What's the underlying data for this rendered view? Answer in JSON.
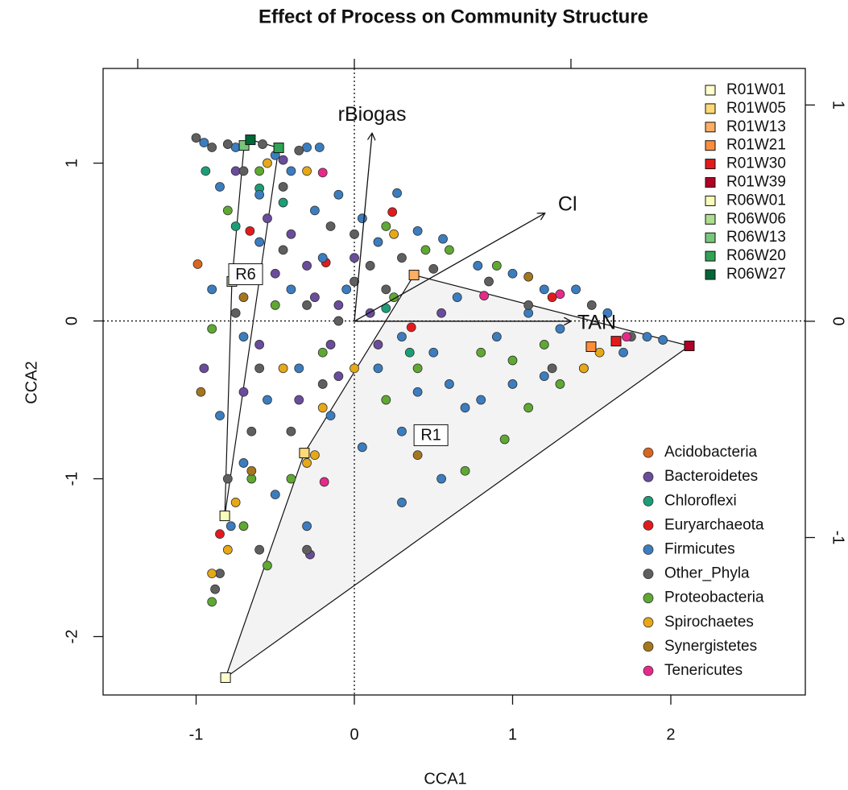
{
  "chart_data": {
    "type": "scatter",
    "title": "Effect of Process on Community Structure",
    "x_label": "CCA1",
    "y_label": "CCA2",
    "xlim": [
      -1.588,
      2.85
    ],
    "ylim": [
      -2.37,
      1.6
    ],
    "xticks": [
      -1,
      0,
      1,
      2
    ],
    "yticks": [
      -2,
      -1,
      0,
      1
    ],
    "x2lim": [
      -1.16,
      2.082
    ],
    "y2lim": [
      -1.728,
      1.169
    ],
    "x2ticks": [
      -1,
      0,
      1
    ],
    "y2ticks": [
      -1,
      0,
      1
    ],
    "legend": "bottom-right",
    "site_legend": "top-right",
    "series": [
      {
        "name": "Acidobacteria",
        "color": "#d9661f",
        "x": [
          -0.99
        ],
        "y": [
          0.36
        ]
      },
      {
        "name": "Bacteroidetes",
        "color": "#6a4c9c",
        "x": [
          -0.45,
          -0.75,
          -0.55,
          -0.3,
          -0.5,
          -0.1,
          0.1,
          -0.15,
          -0.35,
          -0.6,
          -0.25,
          0.0,
          -0.4,
          -0.7,
          0.15,
          -0.28,
          -0.95,
          -0.7,
          0.55,
          -0.1
        ],
        "y": [
          1.02,
          0.95,
          0.65,
          0.35,
          0.3,
          0.1,
          0.05,
          -0.15,
          -0.5,
          -0.15,
          0.15,
          0.4,
          0.55,
          0.3,
          -0.15,
          -1.48,
          -0.3,
          -0.45,
          0.05,
          -0.35
        ]
      },
      {
        "name": "Chloroflexi",
        "color": "#1b9e77",
        "x": [
          -0.94,
          -0.6,
          -0.45,
          0.2,
          0.35,
          -0.75
        ],
        "y": [
          0.95,
          0.84,
          0.75,
          0.08,
          -0.2,
          0.6
        ]
      },
      {
        "name": "Euryarchaeota",
        "color": "#e31a1c",
        "x": [
          0.24,
          -0.66,
          -0.18,
          0.36,
          -0.85,
          1.25
        ],
        "y": [
          0.69,
          0.57,
          0.37,
          -0.04,
          -1.35,
          0.15
        ]
      },
      {
        "name": "Firmicutes",
        "color": "#3b7dbf",
        "x": [
          -0.95,
          -0.75,
          -0.5,
          -0.3,
          -0.22,
          -0.85,
          -0.6,
          -0.4,
          -0.1,
          0.05,
          0.15,
          0.27,
          0.4,
          0.56,
          0.78,
          1.0,
          1.2,
          1.4,
          1.6,
          1.85,
          1.95,
          1.7,
          1.45,
          1.2,
          1.0,
          0.8,
          0.6,
          0.5,
          0.3,
          0.15,
          -0.05,
          -0.2,
          -0.4,
          -0.6,
          -0.7,
          -0.55,
          -0.35,
          -0.15,
          0.05,
          0.3,
          0.55,
          0.3,
          -0.85,
          -0.7,
          -0.5,
          -0.3,
          -0.78,
          0.7,
          0.9,
          1.3,
          -0.9,
          -0.25,
          0.65,
          1.1,
          0.4
        ],
        "y": [
          1.13,
          1.1,
          1.05,
          1.1,
          1.1,
          0.85,
          0.8,
          0.95,
          0.8,
          0.65,
          0.5,
          0.81,
          0.57,
          0.52,
          0.35,
          0.3,
          0.2,
          0.2,
          0.05,
          -0.1,
          -0.12,
          -0.2,
          -0.3,
          -0.35,
          -0.4,
          -0.5,
          -0.4,
          -0.2,
          -0.1,
          -0.3,
          0.2,
          0.4,
          0.2,
          0.5,
          -0.1,
          -0.5,
          -0.3,
          -0.6,
          -0.8,
          -0.7,
          -1.0,
          -1.15,
          -0.6,
          -0.9,
          -1.1,
          -1.3,
          -1.3,
          -0.55,
          -0.1,
          -0.05,
          0.2,
          0.7,
          0.15,
          0.05,
          -0.45
        ]
      },
      {
        "name": "Other_Phyla",
        "color": "#5f5f5f",
        "x": [
          -1.0,
          -0.9,
          -0.8,
          -0.58,
          -0.35,
          -0.7,
          -0.45,
          -0.15,
          0.0,
          0.1,
          0.3,
          0.5,
          0.85,
          1.1,
          1.5,
          1.75,
          -0.45,
          -0.3,
          -0.6,
          -0.4,
          -0.2,
          -0.65,
          -0.8,
          -0.85,
          -0.88,
          -0.6,
          -0.3,
          -0.1,
          0.0,
          0.2,
          -0.75,
          1.25
        ],
        "y": [
          1.16,
          1.1,
          1.12,
          1.12,
          1.08,
          0.95,
          0.85,
          0.6,
          0.55,
          0.35,
          0.4,
          0.33,
          0.25,
          0.1,
          0.1,
          -0.1,
          0.45,
          0.1,
          -0.3,
          -0.7,
          -0.4,
          -0.7,
          -1.0,
          -1.6,
          -1.7,
          -1.45,
          -1.45,
          0.0,
          0.25,
          0.2,
          0.05,
          -0.3
        ]
      },
      {
        "name": "Proteobacteria",
        "color": "#5fa832",
        "x": [
          -0.9,
          -0.7,
          -0.55,
          -0.4,
          -0.9,
          -0.8,
          -0.6,
          0.2,
          0.45,
          0.6,
          0.9,
          0.5,
          0.7,
          0.95,
          1.1,
          1.3,
          1.2,
          0.8,
          0.4,
          0.2,
          -0.2,
          -0.5,
          -0.65,
          1.0,
          0.25
        ],
        "y": [
          -1.78,
          -1.3,
          -1.55,
          -1.0,
          -0.05,
          0.7,
          0.95,
          0.6,
          0.45,
          0.45,
          0.35,
          -0.7,
          -0.95,
          -0.75,
          -0.55,
          -0.4,
          -0.15,
          -0.2,
          -0.3,
          -0.5,
          -0.2,
          0.1,
          -1.0,
          -0.25,
          0.15
        ]
      },
      {
        "name": "Spirochaetes",
        "color": "#e6a817",
        "x": [
          -0.9,
          -0.8,
          -0.3,
          -0.25,
          -0.45,
          -0.55,
          -0.3,
          1.45,
          1.55,
          0.25,
          -0.75,
          0.0,
          -0.2
        ],
        "y": [
          -1.6,
          -1.45,
          -0.9,
          -0.85,
          -0.3,
          1.0,
          0.95,
          -0.3,
          -0.2,
          0.55,
          -1.15,
          -0.3,
          -0.55
        ]
      },
      {
        "name": "Synergistetes",
        "color": "#a6761d",
        "x": [
          -0.97,
          -0.65,
          -0.7,
          0.4,
          1.1
        ],
        "y": [
          -0.45,
          -0.95,
          0.15,
          -0.85,
          0.28
        ]
      },
      {
        "name": "Tenericutes",
        "color": "#e7298a",
        "x": [
          -0.2,
          0.82,
          -0.19,
          1.72,
          1.3
        ],
        "y": [
          0.94,
          0.16,
          -1.02,
          -0.1,
          0.17
        ]
      }
    ],
    "groups": [
      {
        "label": "R1",
        "label_x": 0.484,
        "label_y": -0.724,
        "sites": [
          {
            "name": "R01W01",
            "color": "#ffffcc",
            "x": -0.814,
            "y": -2.26
          },
          {
            "name": "R01W05",
            "color": "#fed976",
            "x": -0.316,
            "y": -0.837
          },
          {
            "name": "R01W13",
            "color": "#fdae61",
            "x": 0.377,
            "y": 0.291
          },
          {
            "name": "R01W21",
            "color": "#fd8d3c",
            "x": 1.496,
            "y": -0.163
          },
          {
            "name": "R01W30",
            "color": "#e31a1c",
            "x": 1.654,
            "y": -0.128
          },
          {
            "name": "R01W39",
            "color": "#b10026",
            "x": 2.117,
            "y": -0.158
          }
        ]
      },
      {
        "label": "R6",
        "label_x": -0.687,
        "label_y": 0.296,
        "sites": [
          {
            "name": "R06W01",
            "color": "#f7fcb9",
            "x": -0.819,
            "y": -1.235
          },
          {
            "name": "R06W06",
            "color": "#addd8e",
            "x": -0.774,
            "y": 0.25
          },
          {
            "name": "R06W13",
            "color": "#78c679",
            "x": -0.697,
            "y": 1.112
          },
          {
            "name": "R06W20",
            "color": "#31a354",
            "x": -0.478,
            "y": 1.097
          },
          {
            "name": "R06W27",
            "color": "#006837",
            "x": -0.657,
            "y": 1.148
          }
        ]
      }
    ],
    "arrows": [
      {
        "label": "rBiogas",
        "x": 0.082,
        "y": 0.87
      },
      {
        "label": "Cl",
        "x": 0.88,
        "y": 0.5
      },
      {
        "label": "TAN",
        "x": 1.0,
        "y": 0.0
      }
    ]
  }
}
